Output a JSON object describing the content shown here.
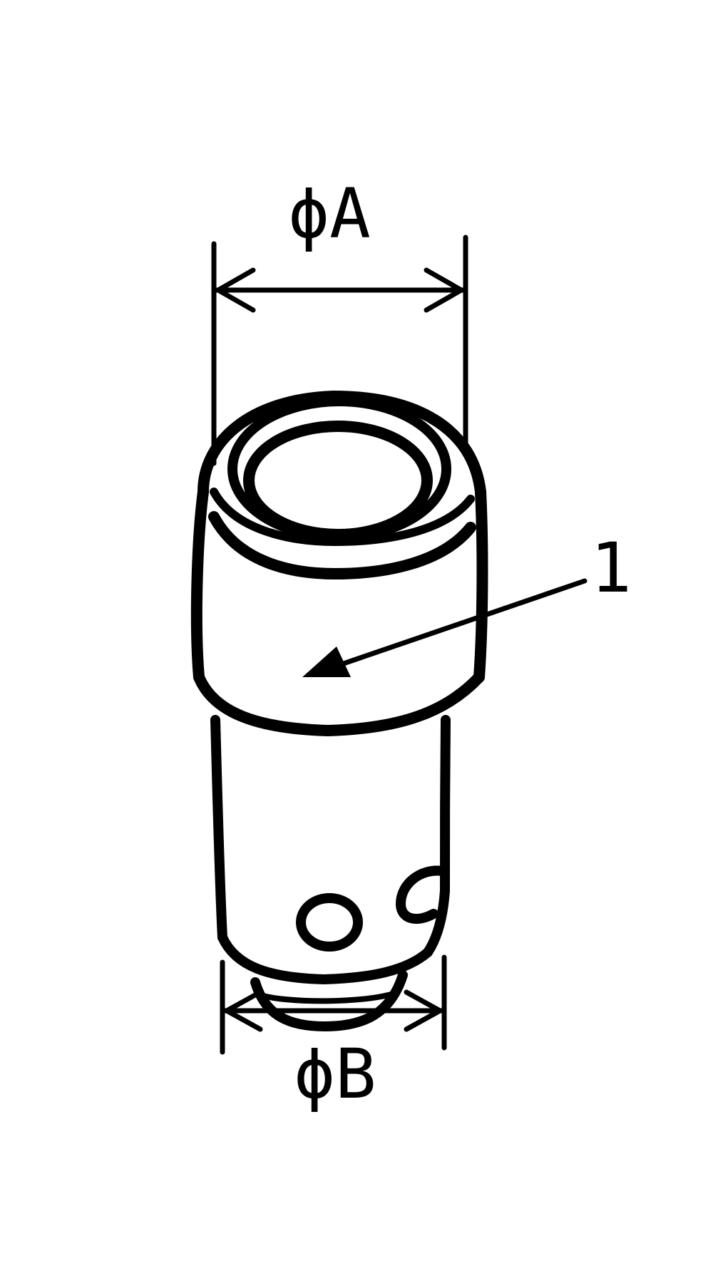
{
  "dimensions": {
    "top_diameter": {
      "label": "ϕA"
    },
    "bottom_diameter": {
      "label": "ϕB"
    }
  },
  "callouts": [
    {
      "label": "1"
    }
  ],
  "colors": {
    "ink": "#000000",
    "background": "#ffffff"
  }
}
